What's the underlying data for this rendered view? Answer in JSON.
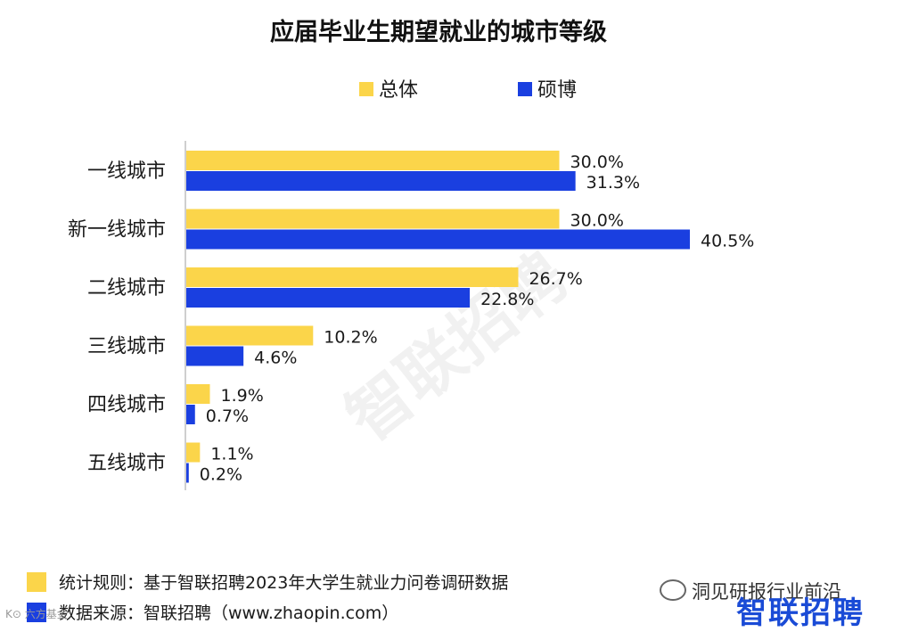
{
  "chart_data": {
    "type": "bar",
    "orientation": "horizontal",
    "title": "应届毕业生期望就业的城市等级",
    "categories": [
      "一线城市",
      "新一线城市",
      "二线城市",
      "三线城市",
      "四线城市",
      "五线城市"
    ],
    "series": [
      {
        "name": "总体",
        "color": "#FBD54A",
        "values": [
          30.0,
          30.0,
          26.7,
          10.2,
          1.9,
          1.1
        ],
        "labels": [
          "30.0%",
          "30.0%",
          "26.7%",
          "10.2%",
          "1.9%",
          "1.1%"
        ]
      },
      {
        "name": "硕博",
        "color": "#1A3FE0",
        "values": [
          31.3,
          40.5,
          22.8,
          4.6,
          0.7,
          0.2
        ],
        "labels": [
          "31.3%",
          "40.5%",
          "22.8%",
          "4.6%",
          "0.7%",
          "0.2%"
        ]
      }
    ],
    "xlim": [
      0,
      40.5
    ],
    "legend_position": "top",
    "grid": false
  },
  "watermark": "智联招聘",
  "footer": {
    "rule": "统计规则：基于智联招聘2023年大学生就业力问卷调研数据",
    "source": "数据来源：智联招聘（www.zhaopin.com）",
    "rule_color": "#FBD54A",
    "source_color": "#1A3FE0"
  },
  "wechat_account": "洞见研报行业前沿",
  "brand_logo": "智联招聘",
  "corner_mark": "K⊙ 六方基金"
}
